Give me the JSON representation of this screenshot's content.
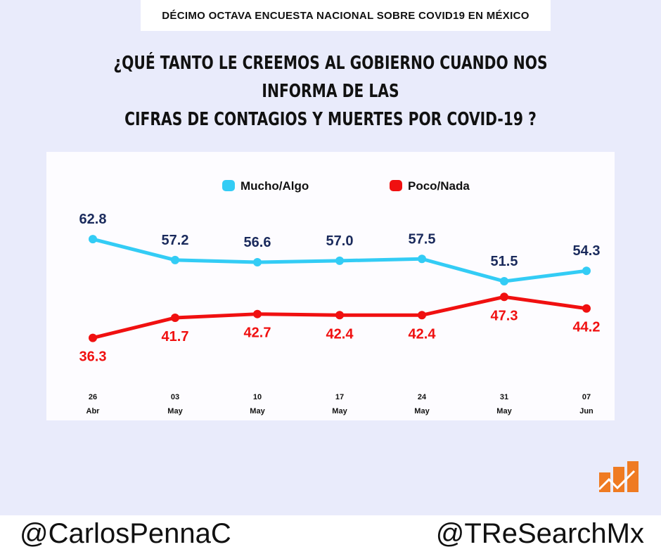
{
  "header": {
    "banner": "DÉCIMO OCTAVA ENCUESTA NACIONAL SOBRE COVID19 EN MÉXICO",
    "title_line1": "¿QUÉ TANTO LE CREEMOS AL GOBIERNO CUANDO NOS INFORMA DE LAS",
    "title_line2": "CIFRAS DE CONTAGIOS Y MUERTES POR COVID-19 ?"
  },
  "chart_data": {
    "type": "line",
    "categories": [
      [
        "26",
        "Abr"
      ],
      [
        "03",
        "May"
      ],
      [
        "10",
        "May"
      ],
      [
        "17",
        "May"
      ],
      [
        "24",
        "May"
      ],
      [
        "31",
        "May"
      ],
      [
        "07",
        "Jun"
      ]
    ],
    "series": [
      {
        "name": "Mucho/Algo",
        "color": "#33ccf5",
        "values": [
          62.8,
          57.2,
          56.6,
          57.0,
          57.5,
          51.5,
          54.3
        ]
      },
      {
        "name": "Poco/Nada",
        "color": "#f01010",
        "values": [
          36.3,
          41.7,
          42.7,
          42.4,
          42.4,
          47.3,
          44.2
        ]
      }
    ],
    "legend": "top-center",
    "grid": false
  },
  "footer": {
    "left": "@CarlosPennaC",
    "right": "@TReSearchMx"
  }
}
